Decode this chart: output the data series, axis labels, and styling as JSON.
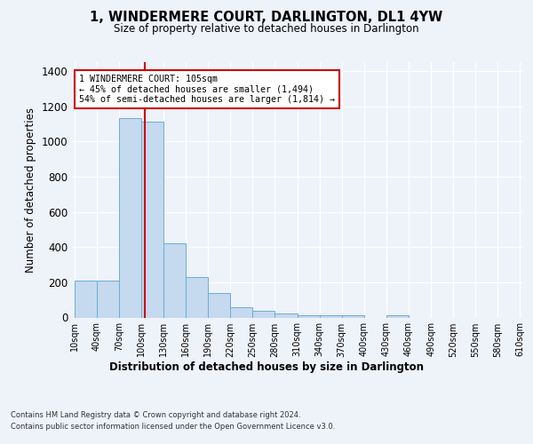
{
  "title": "1, WINDERMERE COURT, DARLINGTON, DL1 4YW",
  "subtitle": "Size of property relative to detached houses in Darlington",
  "xlabel": "Distribution of detached houses by size in Darlington",
  "ylabel": "Number of detached properties",
  "bar_edges": [
    10,
    40,
    70,
    100,
    130,
    160,
    190,
    220,
    250,
    280,
    310,
    340,
    370,
    400,
    430,
    460,
    490,
    520,
    550,
    580,
    610
  ],
  "bar_heights": [
    210,
    210,
    1130,
    1110,
    420,
    230,
    140,
    60,
    40,
    22,
    12,
    12,
    12,
    0,
    13,
    0,
    0,
    0,
    0,
    0
  ],
  "bar_color": "#c5d9ef",
  "bar_edgecolor": "#6aaed6",
  "property_size": 105,
  "annotation_text": "1 WINDERMERE COURT: 105sqm\n← 45% of detached houses are smaller (1,494)\n54% of semi-detached houses are larger (1,814) →",
  "annotation_box_color": "#ffffff",
  "annotation_border_color": "#cc0000",
  "vline_color": "#cc0000",
  "ylim": [
    0,
    1450
  ],
  "yticks": [
    0,
    200,
    400,
    600,
    800,
    1000,
    1200,
    1400
  ],
  "tick_labels": [
    "10sqm",
    "40sqm",
    "70sqm",
    "100sqm",
    "130sqm",
    "160sqm",
    "190sqm",
    "220sqm",
    "250sqm",
    "280sqm",
    "310sqm",
    "340sqm",
    "370sqm",
    "400sqm",
    "430sqm",
    "460sqm",
    "490sqm",
    "520sqm",
    "550sqm",
    "580sqm",
    "610sqm"
  ],
  "footer_line1": "Contains HM Land Registry data © Crown copyright and database right 2024.",
  "footer_line2": "Contains public sector information licensed under the Open Government Licence v3.0.",
  "bg_color": "#eef2f9",
  "plot_bg_color": "#eef2f9"
}
